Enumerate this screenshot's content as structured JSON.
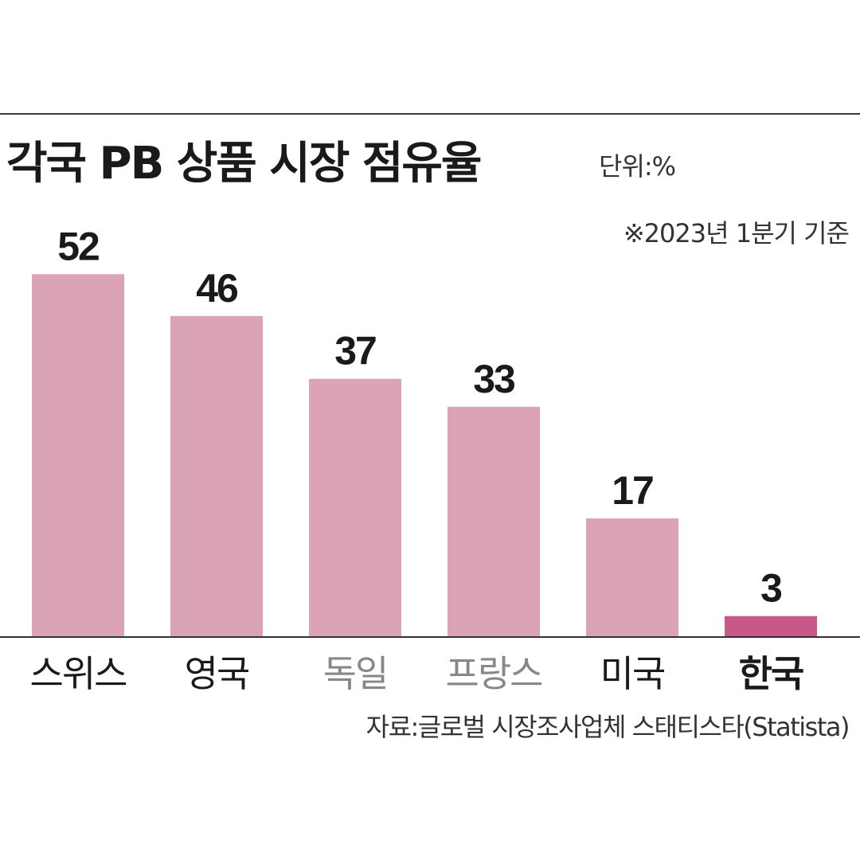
{
  "header": {
    "title": "각국 PB 상품 시장 점유율",
    "unit": "단위:%",
    "note": "※2023년 1분기 기준"
  },
  "footer": {
    "source": "자료:글로벌 시장조사업체 스태티스타(Statista)"
  },
  "colors": {
    "bar": "#dba3b6",
    "highlight_bar": "#c95787",
    "axis": "#333333",
    "label": "#1a1a1a",
    "muted_label": "#888888"
  },
  "chart_data": {
    "type": "bar",
    "categories": [
      "스위스",
      "영국",
      "독일",
      "프랑스",
      "미국",
      "한국"
    ],
    "values": [
      52,
      46,
      37,
      33,
      17,
      3
    ],
    "highlight": "한국",
    "muted_categories": [
      "독일",
      "프랑스"
    ],
    "ylim": [
      0,
      55
    ],
    "grid": false,
    "legend": "none",
    "xlabel": "",
    "ylabel": ""
  }
}
